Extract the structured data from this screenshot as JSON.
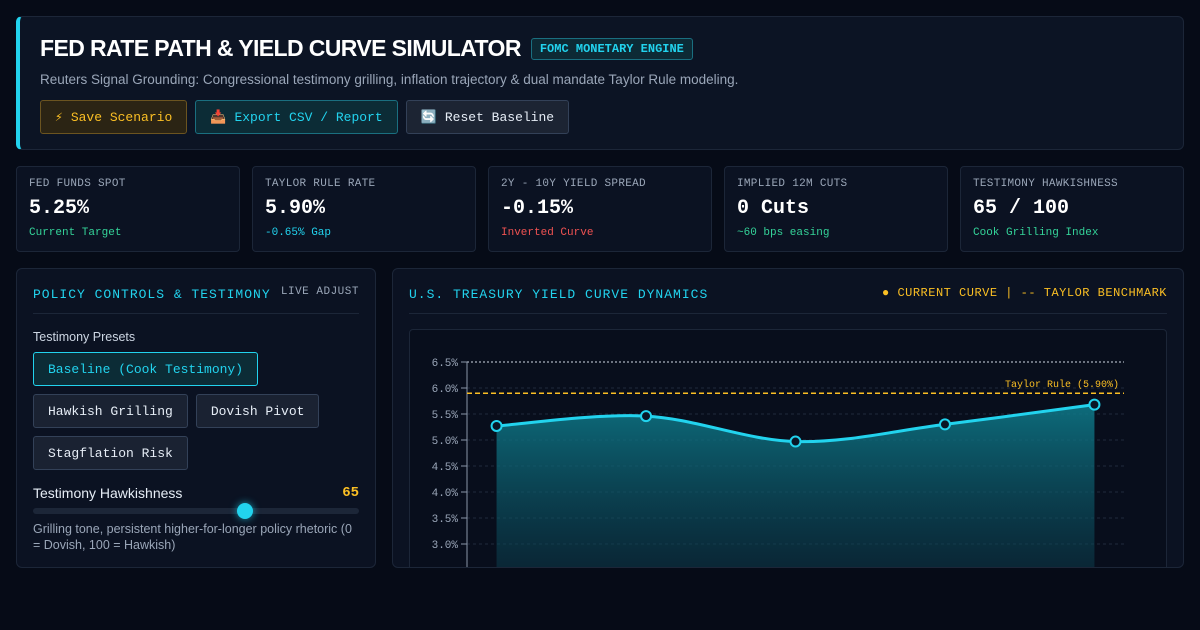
{
  "header": {
    "title": "FED RATE PATH & YIELD CURVE SIMULATOR",
    "badge": "FOMC MONETARY ENGINE",
    "subtitle": "Reuters Signal Grounding: Congressional testimony grilling, inflation trajectory & dual mandate Taylor Rule modeling.",
    "buttons": [
      {
        "icon": "⚡",
        "icon_name": "lightning-icon",
        "label": "Save Scenario"
      },
      {
        "icon": "📥",
        "icon_name": "inbox-tray-icon",
        "label": "Export CSV / Report"
      },
      {
        "icon": "🔄",
        "icon_name": "refresh-icon",
        "label": "Reset Baseline"
      }
    ]
  },
  "metrics": [
    {
      "label": "FED FUNDS SPOT",
      "value": "5.25%",
      "sub": "Current Target",
      "sub_color": "#34d399"
    },
    {
      "label": "TAYLOR RULE RATE",
      "value": "5.90%",
      "sub": "-0.65% Gap",
      "sub_color": "#22d3ee"
    },
    {
      "label": "2Y - 10Y YIELD SPREAD",
      "value": "-0.15%",
      "sub": "Inverted Curve",
      "sub_color": "#f05252"
    },
    {
      "label": "IMPLIED 12M CUTS",
      "value": "0 Cuts",
      "sub": "~60 bps easing",
      "sub_color": "#34d399"
    },
    {
      "label": "TESTIMONY HAWKISHNESS",
      "value": "65 / 100",
      "sub": "Cook Grilling Index",
      "sub_color": "#34d399"
    }
  ],
  "controls": {
    "title": "POLICY CONTROLS & TESTIMONY",
    "aside": "LIVE ADJUST",
    "presets_label": "Testimony Presets",
    "presets": [
      {
        "label": "Baseline (Cook Testimony)",
        "active": true
      },
      {
        "label": "Hawkish Grilling",
        "active": false
      },
      {
        "label": "Dovish Pivot",
        "active": false
      },
      {
        "label": "Stagflation Risk",
        "active": false
      }
    ],
    "slider": {
      "label": "Testimony Hawkishness",
      "value": 65,
      "value_text": "65",
      "min": 0,
      "max": 100,
      "help": "Grilling tone, persistent higher-for-longer policy rhetoric (0 = Dovish, 100 = Hawkish)"
    }
  },
  "chart_panel": {
    "title": "U.S. TREASURY YIELD CURVE DYNAMICS",
    "legend": "● CURRENT CURVE | -- TAYLOR BENCHMARK"
  },
  "chart_data": {
    "type": "area",
    "y_ticks": [
      "6.5%",
      "6.0%",
      "5.5%",
      "5.0%",
      "4.5%",
      "4.0%",
      "3.5%",
      "3.0%"
    ],
    "y_tick_values": [
      6.5,
      6.0,
      5.5,
      5.0,
      4.5,
      4.0,
      3.5,
      3.0
    ],
    "ylim": [
      3.0,
      6.5
    ],
    "series": [
      {
        "values": [
          5.27,
          5.46,
          4.97,
          5.3,
          5.68
        ],
        "color": "#22d3ee"
      }
    ],
    "benchmark": {
      "label": "Taylor Rule (5.90%)",
      "value": 5.9,
      "color": "#fbbf24"
    },
    "grid": true
  },
  "colors": {
    "accent": "#22d3ee",
    "gold": "#fbbf24",
    "negative": "#f05252",
    "positive": "#34d399"
  }
}
